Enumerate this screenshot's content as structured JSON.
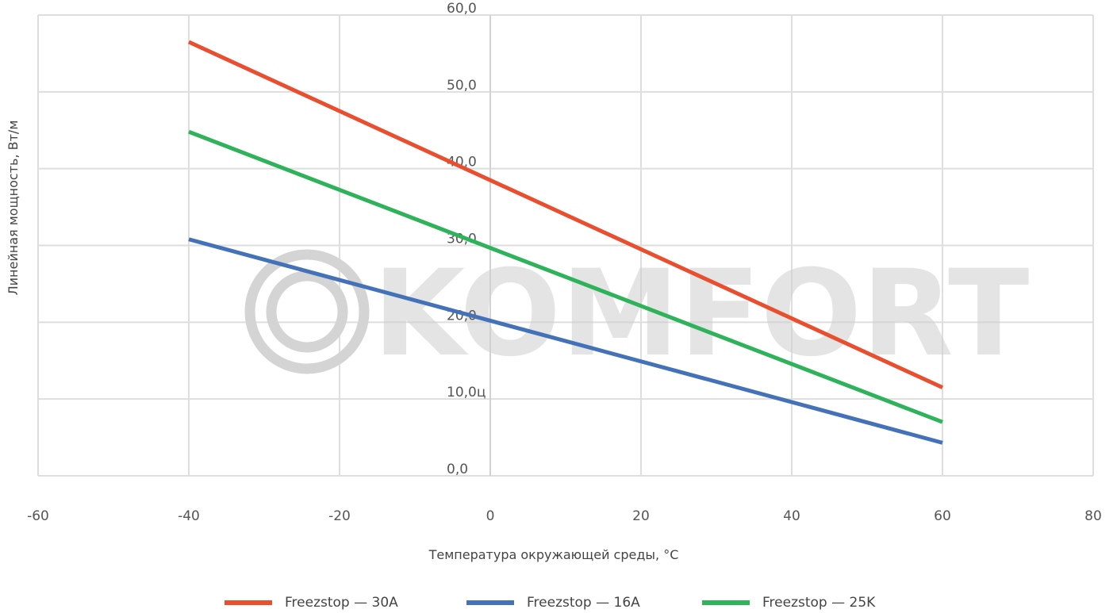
{
  "chart_data": {
    "type": "line",
    "xlabel": "Температура окружающей среды, °С",
    "ylabel": "Линейная мощность, Вт/м",
    "xlim": [
      -60,
      80
    ],
    "ylim": [
      0,
      60
    ],
    "x_ticks": [
      "-60",
      "-40",
      "-20",
      "0",
      "20",
      "40",
      "60",
      "80"
    ],
    "y_ticks": [
      "0,0",
      "10,0ц",
      "20,0",
      "30,0",
      "40,0",
      "50,0",
      "60,0"
    ],
    "grid": true,
    "legend_position": "bottom",
    "watermark": "KOMFORT",
    "series": [
      {
        "name": "Freezstop — 30A",
        "color": "#e94e2e",
        "x": [
          -40,
          60
        ],
        "y": [
          56.5,
          11.5
        ]
      },
      {
        "name": "Freezstop — 16A",
        "color": "#4472b8",
        "x": [
          -40,
          60
        ],
        "y": [
          30.8,
          4.3
        ]
      },
      {
        "name": "Freezstop — 25K",
        "color": "#2eb25a",
        "x": [
          -40,
          60
        ],
        "y": [
          44.8,
          7.0
        ]
      }
    ]
  }
}
